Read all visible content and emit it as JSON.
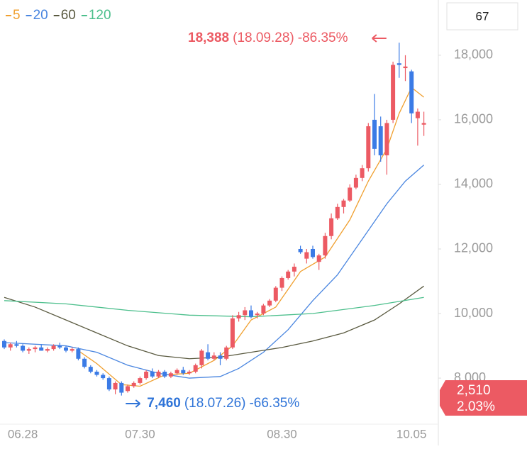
{
  "chart_data": {
    "type": "candlestick",
    "header_value": "67",
    "up_color": "#ec5a63",
    "down_color": "#3b7be6",
    "categories": [
      null,
      null,
      null,
      "06.28",
      null,
      null,
      null,
      null,
      null,
      null,
      null,
      null,
      null,
      null,
      null,
      null,
      null,
      null,
      null,
      null,
      null,
      null,
      "07.30",
      null,
      null,
      null,
      null,
      null,
      null,
      null,
      null,
      null,
      null,
      null,
      null,
      null,
      null,
      null,
      null,
      null,
      null,
      null,
      null,
      null,
      null,
      "08.30",
      null,
      null,
      null,
      null,
      null,
      null,
      null,
      null,
      null,
      null,
      null,
      null,
      null,
      null,
      null,
      null,
      null,
      null,
      null,
      null,
      "10.05",
      null,
      null
    ],
    "open": [
      9150,
      8950,
      9050,
      9000,
      8850,
      8900,
      8950,
      8850,
      8900,
      9000,
      8950,
      8850,
      8900,
      8600,
      8350,
      8200,
      8100,
      8000,
      7650,
      7850,
      7600,
      7750,
      7850,
      8000,
      8200,
      8050,
      8200,
      8050,
      8150,
      8250,
      8150,
      8200,
      8400,
      8800,
      8600,
      8700,
      8600,
      8950,
      9850,
      9950,
      10100,
      9950,
      10000,
      10250,
      10400,
      10800,
      11100,
      11300,
      12000,
      11700,
      12000,
      11600,
      11800,
      12400,
      12950,
      13300,
      13500,
      13900,
      14200,
      14500,
      16000,
      15800,
      14900,
      16000,
      17750,
      17600,
      17500,
      16050,
      15850
    ],
    "high": [
      9200,
      9100,
      9150,
      9050,
      8950,
      9000,
      9050,
      8950,
      9050,
      9100,
      9000,
      8950,
      8950,
      8650,
      8400,
      8250,
      8150,
      8050,
      7900,
      7900,
      7800,
      7900,
      8050,
      8250,
      8300,
      8250,
      8250,
      8200,
      8300,
      8350,
      8250,
      8450,
      8900,
      9050,
      8800,
      8800,
      9000,
      9950,
      10050,
      10200,
      10250,
      10050,
      10300,
      10450,
      10850,
      11150,
      11350,
      11550,
      12100,
      12000,
      12100,
      11850,
      12500,
      13100,
      13400,
      13550,
      14000,
      14300,
      14600,
      15900,
      16800,
      16100,
      16000,
      17800,
      18388,
      18000,
      17550,
      16350,
      16250
    ],
    "low": [
      8900,
      8850,
      8950,
      8800,
      8750,
      8800,
      8850,
      8800,
      8850,
      8900,
      8800,
      8800,
      8550,
      8300,
      8150,
      8050,
      7950,
      7600,
      7500,
      7460,
      7550,
      7700,
      7800,
      7950,
      8000,
      8000,
      8000,
      8000,
      8100,
      8100,
      8100,
      8150,
      8300,
      8550,
      8550,
      8400,
      8550,
      8900,
      9750,
      9800,
      9850,
      9850,
      9950,
      10200,
      10350,
      10700,
      11050,
      11150,
      11850,
      11550,
      11700,
      11350,
      11700,
      12300,
      12900,
      13100,
      13450,
      13850,
      14100,
      14400,
      14900,
      14700,
      14300,
      15900,
      17300,
      17200,
      15900,
      15200,
      15500
    ],
    "close": [
      8950,
      9050,
      9000,
      8850,
      8900,
      8950,
      8850,
      8900,
      9000,
      8950,
      8850,
      8900,
      8600,
      8350,
      8200,
      8100,
      8000,
      7650,
      7850,
      7550,
      7750,
      7850,
      8000,
      8200,
      8050,
      8200,
      8050,
      8150,
      8250,
      8150,
      8200,
      8400,
      8850,
      8600,
      8700,
      8600,
      8950,
      9850,
      9950,
      10100,
      9900,
      10000,
      10250,
      10400,
      10800,
      11100,
      11300,
      11450,
      11900,
      11900,
      11750,
      11800,
      12400,
      12950,
      13300,
      13500,
      13900,
      14200,
      14500,
      15800,
      15100,
      14900,
      15900,
      17700,
      17700,
      17650,
      16200,
      16250,
      15900
    ],
    "series": [
      {
        "name": "5",
        "color": "#f0a030",
        "x": [
          12,
          15,
          19,
          22,
          26,
          30,
          34,
          37,
          40,
          44,
          48,
          52,
          56,
          59,
          62,
          64,
          66,
          68
        ],
        "values": [
          8850,
          8450,
          7800,
          7750,
          8100,
          8150,
          8550,
          9000,
          9800,
          10200,
          11300,
          11750,
          12900,
          14100,
          15100,
          16200,
          17000,
          16700
        ]
      },
      {
        "name": "20",
        "color": "#4a86e0",
        "x": [
          0,
          10,
          15,
          20,
          25,
          30,
          35,
          38,
          42,
          46,
          50,
          54,
          58,
          62,
          65,
          68
        ],
        "values": [
          9100,
          9000,
          8800,
          8400,
          8150,
          8000,
          8050,
          8300,
          8800,
          9500,
          10400,
          11200,
          12300,
          13400,
          14100,
          14600
        ]
      },
      {
        "name": "60",
        "color": "#5a5a40",
        "x": [
          0,
          5,
          10,
          15,
          20,
          25,
          30,
          35,
          40,
          45,
          50,
          55,
          60,
          64,
          68
        ],
        "values": [
          10500,
          10200,
          9800,
          9400,
          9000,
          8700,
          8600,
          8650,
          8800,
          8950,
          9150,
          9400,
          9800,
          10300,
          10850
        ]
      },
      {
        "name": "120",
        "color": "#4cbf8c",
        "x": [
          0,
          10,
          20,
          30,
          40,
          50,
          60,
          68
        ],
        "values": [
          10400,
          10300,
          10100,
          9950,
          9900,
          10000,
          10250,
          10500
        ]
      }
    ],
    "ylim": [
      6530,
      19710
    ],
    "yticks": [
      {
        "value": 8000,
        "label": "8,000"
      },
      {
        "value": 10000,
        "label": "10,000"
      },
      {
        "value": 12000,
        "label": "12,000"
      },
      {
        "value": 14000,
        "label": "14,000"
      },
      {
        "value": 16000,
        "label": "16,000"
      },
      {
        "value": 18000,
        "label": "18,000"
      }
    ],
    "annotations": [
      {
        "index": 64,
        "value": 18388,
        "label": "18,388",
        "date": "(18.09.28)",
        "change": "-86.35%",
        "color": "#ec5a63",
        "kind": "high"
      },
      {
        "index": 19,
        "value": 7460,
        "label": "7,460",
        "date": "(18.07.26)",
        "change": "-66.35%",
        "color": "#2f74d8",
        "kind": "low"
      }
    ],
    "price_tag": {
      "change": "2,510",
      "percent": "2.03%"
    }
  }
}
